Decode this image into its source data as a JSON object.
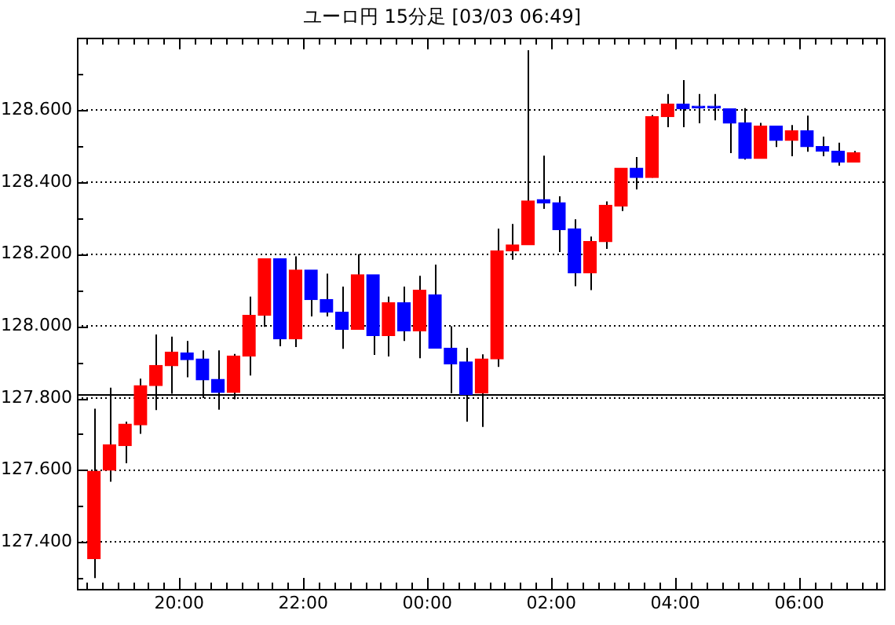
{
  "chart_data": {
    "type": "candlestick",
    "title": "ユーロ円 15分足 [03/03 06:49]",
    "x": [
      "--03-02T18:37:30",
      "--03-02T18:52:30",
      "--03-02T19:07:30",
      "--03-02T19:22:30",
      "--03-02T19:37:30",
      "--03-02T19:52:30",
      "--03-02T20:07:30",
      "--03-02T20:22:30",
      "--03-02T20:37:30",
      "--03-02T20:52:30",
      "--03-02T21:07:30",
      "--03-02T21:22:30",
      "--03-02T21:37:30",
      "--03-02T21:52:30",
      "--03-02T22:07:30",
      "--03-02T22:22:30",
      "--03-02T22:37:30",
      "--03-02T22:52:30",
      "--03-02T23:07:30",
      "--03-02T23:22:30",
      "--03-02T23:37:30",
      "--03-02T23:52:30",
      "--03-03T00:07:30",
      "--03-03T00:22:30",
      "--03-03T00:37:30",
      "--03-03T00:52:30",
      "--03-03T01:07:30",
      "--03-03T01:22:30",
      "--03-03T01:37:30",
      "--03-03T01:52:30",
      "--03-03T02:07:30",
      "--03-03T02:22:30",
      "--03-03T02:37:30",
      "--03-03T02:52:30",
      "--03-03T03:07:30",
      "--03-03T03:22:30",
      "--03-03T03:37:30",
      "--03-03T03:52:30",
      "--03-03T04:07:30",
      "--03-03T04:22:30",
      "--03-03T04:37:30",
      "--03-03T04:52:30",
      "--03-03T05:07:30",
      "--03-03T05:22:30",
      "--03-03T05:37:30",
      "--03-03T05:52:30",
      "--03-03T06:07:30",
      "--03-03T06:22:30",
      "--03-03T06:37:30",
      "--03-03T06:52:30"
    ],
    "ohlc": [
      [
        127.354,
        127.771,
        127.3,
        127.597
      ],
      [
        127.6,
        127.829,
        127.568,
        127.67
      ],
      [
        127.668,
        127.735,
        127.619,
        127.728
      ],
      [
        127.726,
        127.854,
        127.701,
        127.835
      ],
      [
        127.835,
        127.977,
        127.767,
        127.891
      ],
      [
        127.89,
        127.971,
        127.812,
        127.928
      ],
      [
        127.926,
        127.959,
        127.858,
        127.907
      ],
      [
        127.909,
        127.933,
        127.8,
        127.851
      ],
      [
        127.852,
        127.933,
        127.768,
        127.816
      ],
      [
        127.816,
        127.923,
        127.797,
        127.917
      ],
      [
        127.917,
        128.082,
        127.863,
        128.03
      ],
      [
        128.03,
        128.187,
        127.998,
        128.187
      ],
      [
        128.187,
        128.187,
        127.944,
        127.965
      ],
      [
        127.965,
        128.194,
        127.942,
        128.156
      ],
      [
        128.156,
        128.156,
        128.027,
        128.074
      ],
      [
        128.074,
        128.146,
        128.027,
        128.039
      ],
      [
        128.039,
        128.11,
        127.937,
        127.991
      ],
      [
        127.991,
        128.2,
        127.991,
        128.143
      ],
      [
        128.143,
        128.143,
        127.92,
        127.974
      ],
      [
        127.974,
        128.082,
        127.916,
        128.065
      ],
      [
        128.065,
        128.11,
        127.959,
        127.987
      ],
      [
        127.987,
        128.14,
        127.911,
        128.1
      ],
      [
        128.087,
        128.171,
        127.939,
        127.939
      ],
      [
        127.939,
        128.0,
        127.814,
        127.895
      ],
      [
        127.901,
        127.94,
        127.735,
        127.81
      ],
      [
        127.814,
        127.922,
        127.72,
        127.909
      ],
      [
        127.909,
        128.271,
        127.887,
        128.209
      ],
      [
        128.209,
        128.284,
        128.185,
        128.226
      ],
      [
        128.226,
        128.767,
        128.226,
        128.348
      ],
      [
        128.352,
        128.474,
        128.326,
        128.342
      ],
      [
        128.343,
        128.361,
        128.206,
        128.268
      ],
      [
        128.27,
        128.297,
        128.111,
        128.148
      ],
      [
        128.148,
        128.249,
        128.1,
        128.235
      ],
      [
        128.235,
        128.347,
        128.215,
        128.336
      ],
      [
        128.334,
        128.439,
        128.32,
        128.439
      ],
      [
        128.439,
        128.47,
        128.38,
        128.413
      ],
      [
        128.413,
        128.587,
        128.413,
        128.582
      ],
      [
        128.582,
        128.645,
        128.553,
        128.617
      ],
      [
        128.617,
        128.684,
        128.553,
        128.604
      ],
      [
        128.607,
        128.645,
        128.564,
        128.607
      ],
      [
        128.607,
        128.645,
        128.572,
        128.607
      ],
      [
        128.604,
        128.604,
        128.481,
        128.564
      ],
      [
        128.565,
        128.606,
        128.463,
        128.466
      ],
      [
        128.466,
        128.565,
        128.466,
        128.556
      ],
      [
        128.556,
        128.556,
        128.498,
        128.516
      ],
      [
        128.516,
        128.559,
        128.472,
        128.543
      ],
      [
        128.543,
        128.585,
        128.485,
        128.499
      ],
      [
        128.499,
        128.527,
        128.472,
        128.486
      ],
      [
        128.486,
        128.51,
        128.446,
        128.456
      ],
      [
        128.456,
        128.487,
        128.456,
        128.482
      ]
    ],
    "colors": [
      "#ff0000",
      "#ff0000",
      "#ff0000",
      "#ff0000",
      "#ff0000",
      "#ff0000",
      "#0000ff",
      "#0000ff",
      "#0000ff",
      "#ff0000",
      "#ff0000",
      "#ff0000",
      "#0000ff",
      "#ff0000",
      "#0000ff",
      "#0000ff",
      "#0000ff",
      "#ff0000",
      "#0000ff",
      "#ff0000",
      "#0000ff",
      "#ff0000",
      "#0000ff",
      "#0000ff",
      "#0000ff",
      "#ff0000",
      "#ff0000",
      "#ff0000",
      "#ff0000",
      "#0000ff",
      "#0000ff",
      "#0000ff",
      "#ff0000",
      "#ff0000",
      "#ff0000",
      "#0000ff",
      "#ff0000",
      "#ff0000",
      "#0000ff",
      "#0000ff",
      "#0000ff",
      "#0000ff",
      "#0000ff",
      "#ff0000",
      "#0000ff",
      "#ff0000",
      "#0000ff",
      "#0000ff",
      "#0000ff",
      "#ff0000"
    ],
    "xlim": [
      "--03-02T18:21",
      "--03-03T07:22"
    ],
    "xticks": [
      {
        "value": "--03-02T18:30",
        "label": null
      },
      {
        "value": "--03-02T18:45",
        "label": null
      },
      {
        "value": "--03-02T19:00",
        "label": null
      },
      {
        "value": "--03-02T19:15",
        "label": null
      },
      {
        "value": "--03-02T19:30",
        "label": null
      },
      {
        "value": "--03-02T19:45",
        "label": null
      },
      {
        "value": "--03-02T20:00",
        "label": "20:00"
      },
      {
        "value": "--03-02T20:15",
        "label": null
      },
      {
        "value": "--03-02T20:30",
        "label": null
      },
      {
        "value": "--03-02T20:45",
        "label": null
      },
      {
        "value": "--03-02T21:00",
        "label": null
      },
      {
        "value": "--03-02T21:15",
        "label": null
      },
      {
        "value": "--03-02T21:30",
        "label": null
      },
      {
        "value": "--03-02T21:45",
        "label": null
      },
      {
        "value": "--03-02T22:00",
        "label": "22:00"
      },
      {
        "value": "--03-02T22:15",
        "label": null
      },
      {
        "value": "--03-02T22:30",
        "label": null
      },
      {
        "value": "--03-02T22:45",
        "label": null
      },
      {
        "value": "--03-02T23:00",
        "label": null
      },
      {
        "value": "--03-02T23:15",
        "label": null
      },
      {
        "value": "--03-02T23:30",
        "label": null
      },
      {
        "value": "--03-02T23:45",
        "label": null
      },
      {
        "value": "--03-03T00:00",
        "label": "00:00"
      },
      {
        "value": "--03-03T00:15",
        "label": null
      },
      {
        "value": "--03-03T00:30",
        "label": null
      },
      {
        "value": "--03-03T00:45",
        "label": null
      },
      {
        "value": "--03-03T01:00",
        "label": null
      },
      {
        "value": "--03-03T01:15",
        "label": null
      },
      {
        "value": "--03-03T01:30",
        "label": null
      },
      {
        "value": "--03-03T01:45",
        "label": null
      },
      {
        "value": "--03-03T02:00",
        "label": "02:00"
      },
      {
        "value": "--03-03T02:15",
        "label": null
      },
      {
        "value": "--03-03T02:30",
        "label": null
      },
      {
        "value": "--03-03T02:45",
        "label": null
      },
      {
        "value": "--03-03T03:00",
        "label": null
      },
      {
        "value": "--03-03T03:15",
        "label": null
      },
      {
        "value": "--03-03T03:30",
        "label": null
      },
      {
        "value": "--03-03T03:45",
        "label": null
      },
      {
        "value": "--03-03T04:00",
        "label": "04:00"
      },
      {
        "value": "--03-03T04:15",
        "label": null
      },
      {
        "value": "--03-03T04:30",
        "label": null
      },
      {
        "value": "--03-03T04:45",
        "label": null
      },
      {
        "value": "--03-03T05:00",
        "label": null
      },
      {
        "value": "--03-03T05:15",
        "label": null
      },
      {
        "value": "--03-03T05:30",
        "label": null
      },
      {
        "value": "--03-03T05:45",
        "label": null
      },
      {
        "value": "--03-03T06:00",
        "label": "06:00"
      },
      {
        "value": "--03-03T06:15",
        "label": null
      },
      {
        "value": "--03-03T06:30",
        "label": null
      },
      {
        "value": "--03-03T06:45",
        "label": null
      },
      {
        "value": "--03-03T07:00",
        "label": null
      },
      {
        "value": "--03-03T07:15",
        "label": null
      }
    ],
    "ylim": [
      127.27,
      128.8
    ],
    "yticks": [
      {
        "value": 127.3,
        "label": null
      },
      {
        "value": 127.4,
        "label": "127.400"
      },
      {
        "value": 127.5,
        "label": null
      },
      {
        "value": 127.6,
        "label": "127.600"
      },
      {
        "value": 127.7,
        "label": null
      },
      {
        "value": 127.8,
        "label": "127.800"
      },
      {
        "value": 127.9,
        "label": null
      },
      {
        "value": 128.0,
        "label": "128.000"
      },
      {
        "value": 128.1,
        "label": null
      },
      {
        "value": 128.2,
        "label": "128.200"
      },
      {
        "value": 128.3,
        "label": null
      },
      {
        "value": 128.4,
        "label": "128.400"
      },
      {
        "value": 128.5,
        "label": null
      },
      {
        "value": 128.6,
        "label": "128.600"
      },
      {
        "value": 128.7,
        "label": null
      }
    ],
    "ref_lines": [
      {
        "axis": "y",
        "value": 127.81,
        "color": "#000000"
      }
    ],
    "grid": "y",
    "legend": false
  }
}
